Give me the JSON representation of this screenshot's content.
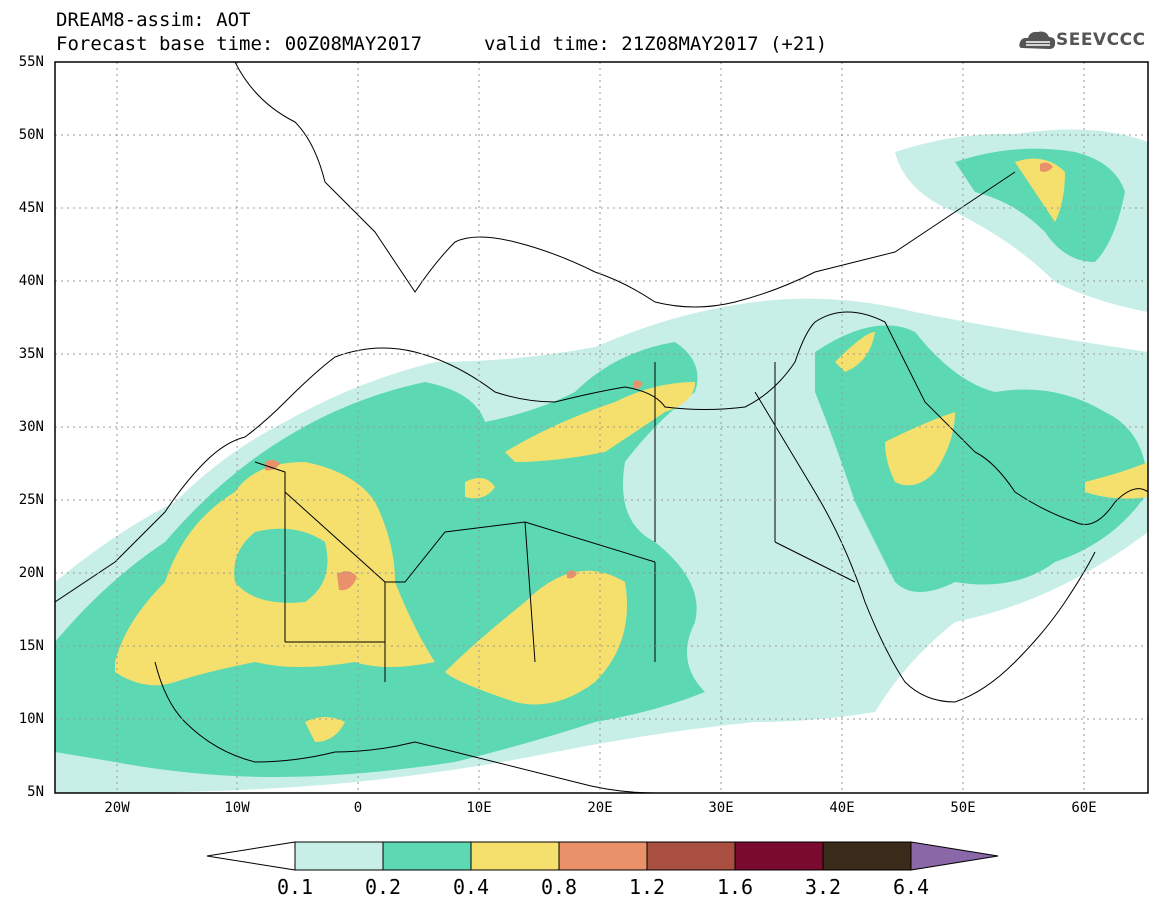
{
  "header": {
    "model_line": "DREAM8-assim: AOT",
    "base_time": "Forecast base time: 00Z08MAY2017",
    "valid_time": "valid time: 21Z08MAY2017 (+21)",
    "logo_text": "SEEVCCC"
  },
  "axes": {
    "lat_labels": [
      "55N",
      "50N",
      "45N",
      "40N",
      "35N",
      "30N",
      "25N",
      "20N",
      "15N",
      "10N",
      "5N"
    ],
    "lon_labels": [
      "20W",
      "10W",
      "0",
      "10E",
      "20E",
      "30E",
      "40E",
      "50E",
      "60E"
    ]
  },
  "colorbar": {
    "labels": [
      "0.1",
      "0.2",
      "0.4",
      "0.8",
      "1.2",
      "1.6",
      "3.2",
      "6.4"
    ],
    "colors": [
      "#ffffff",
      "#c7efe8",
      "#5cd9b2",
      "#f5e06e",
      "#e8916a",
      "#a94f3f",
      "#7a0a2e",
      "#3a2a1a",
      "#8a68a8"
    ]
  },
  "map": {
    "region": "North Africa, Europe, Middle East",
    "field": "AOT",
    "palette": {
      "level1": "#c7efe8",
      "level2": "#5cd9b2",
      "level3": "#f5e06e",
      "level4": "#e8916a"
    }
  }
}
